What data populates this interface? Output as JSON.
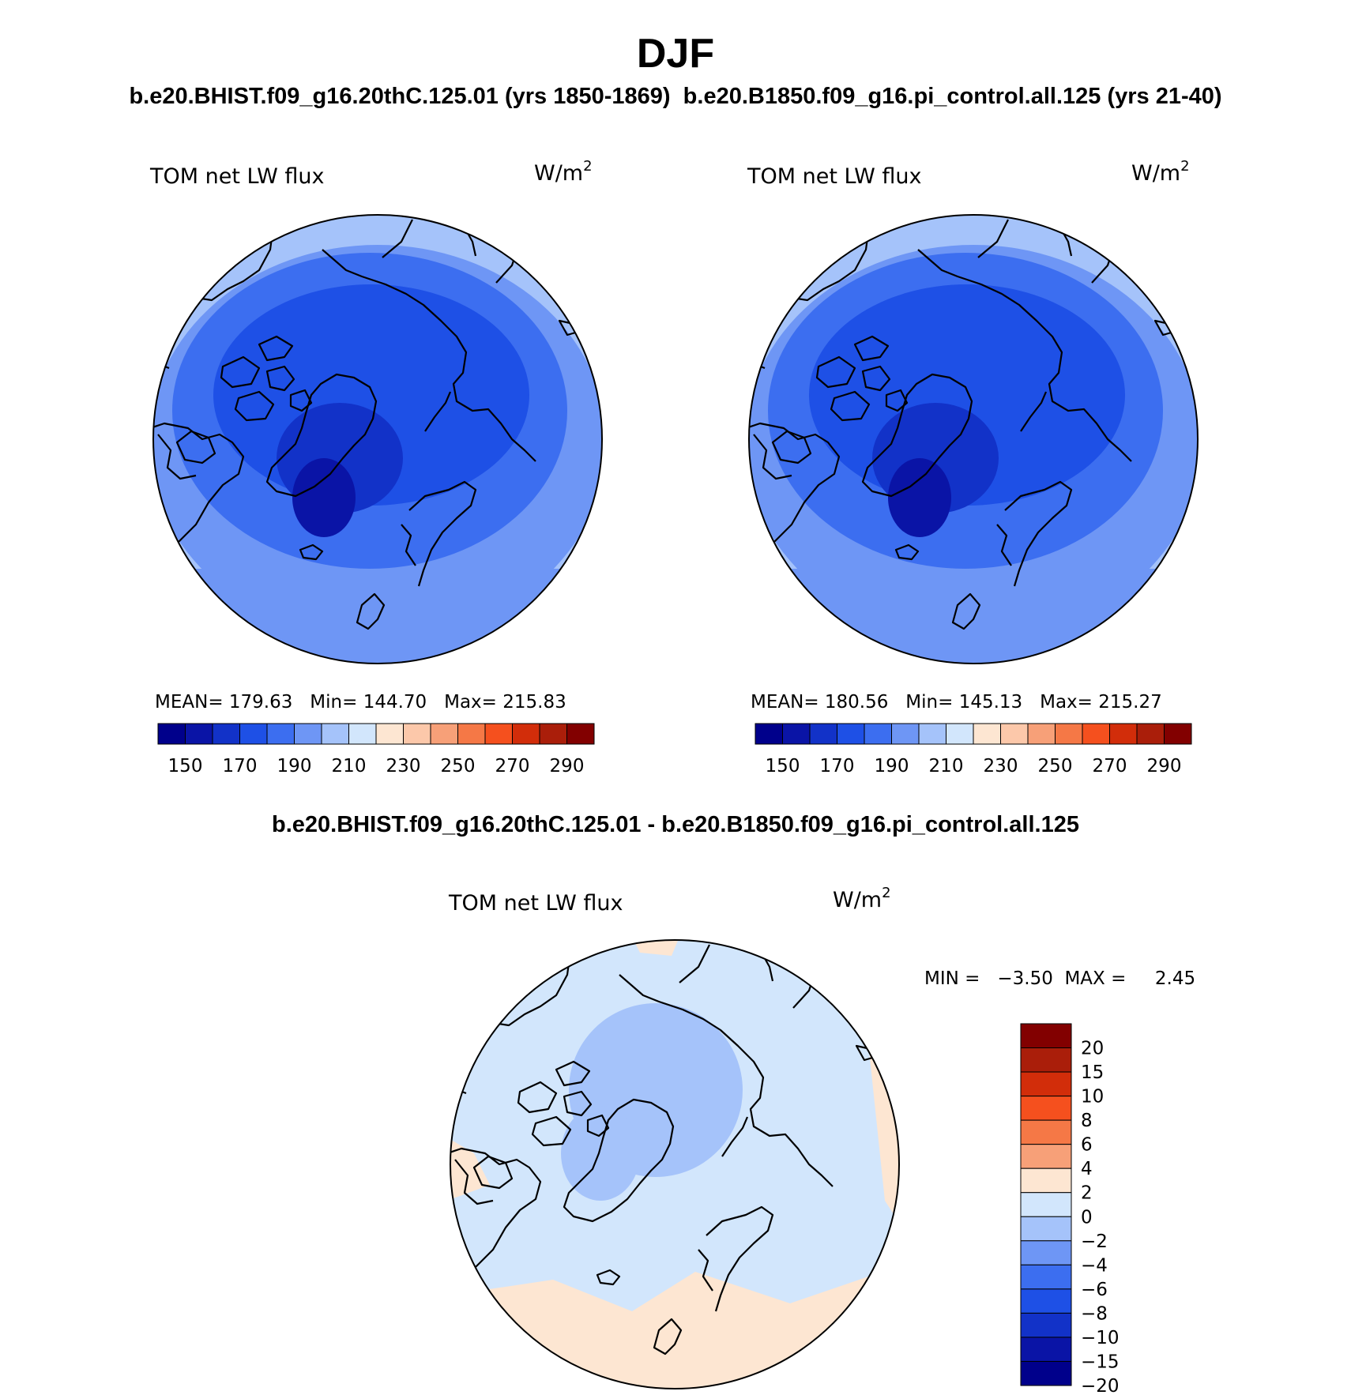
{
  "figure": {
    "season": "DJF",
    "top_title": "b.e20.BHIST.f09_g16.20thC.125.01 (yrs 1850-1869)  b.e20.B1850.f09_g16.pi_control.all.125 (yrs 21-40)",
    "diff_title": "b.e20.BHIST.f09_g16.20thC.125.01 - b.e20.B1850.f09_g16.pi_control.all.125"
  },
  "panels": [
    {
      "variable": "TOM net LW flux",
      "units": "W/m",
      "units_exp": "2",
      "stats": "MEAN= 179.63   Min= 144.70   Max= 215.83"
    },
    {
      "variable": "TOM net LW flux",
      "units": "W/m",
      "units_exp": "2",
      "stats": "MEAN= 180.56   Min= 145.13   Max= 215.27"
    },
    {
      "variable": "TOM net LW flux",
      "units": "W/m",
      "units_exp": "2",
      "stats": "MIN =   −3.50  MAX =     2.45"
    }
  ],
  "colorbar_abs": {
    "colors": [
      "#00008b",
      "#0a14a6",
      "#1232c8",
      "#1e50e6",
      "#3c6ef0",
      "#6e96f5",
      "#a5c3fa",
      "#d2e6fc",
      "#fde6d2",
      "#fcc8aa",
      "#f7a078",
      "#f57846",
      "#f5501e",
      "#d22d0a",
      "#aa1e0a",
      "#820000"
    ],
    "tick_labels": [
      "150",
      "170",
      "190",
      "210",
      "230",
      "250",
      "270",
      "290"
    ]
  },
  "colorbar_diff": {
    "colors": [
      "#820000",
      "#aa1e0a",
      "#d22d0a",
      "#f5501e",
      "#f57846",
      "#f7a078",
      "#fde6d2",
      "#d2e6fc",
      "#a5c3fa",
      "#6e96f5",
      "#3c6ef0",
      "#1e50e6",
      "#1232c8",
      "#0a14a6",
      "#00008b"
    ],
    "tick_labels": [
      "20",
      "15",
      "10",
      "8",
      "6",
      "4",
      "2",
      "0",
      "−2",
      "−4",
      "−6",
      "−8",
      "−10",
      "−15",
      "−20"
    ]
  }
}
